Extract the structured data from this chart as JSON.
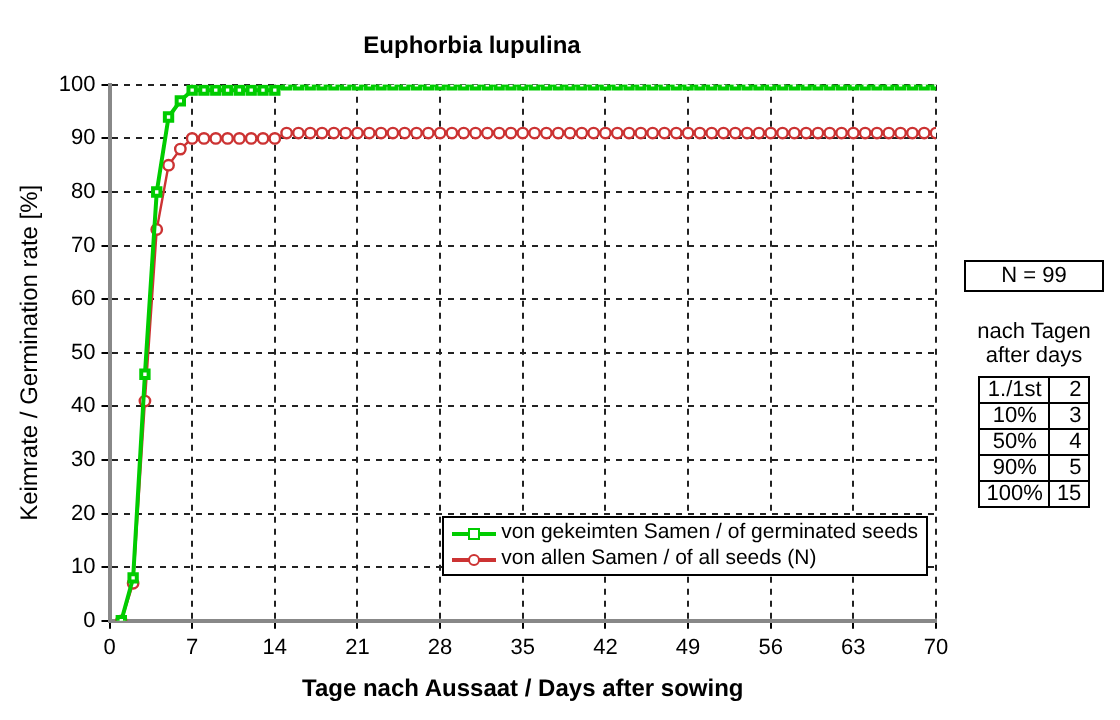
{
  "chart_data": {
    "type": "line",
    "title": "Euphorbia lupulina",
    "xlabel": "Tage nach Aussaat / Days after sowing",
    "ylabel": "Keimrate / Germination rate [%]",
    "x": [
      1,
      2,
      3,
      4,
      5,
      6,
      7,
      8,
      9,
      10,
      11,
      12,
      13,
      14,
      15,
      16,
      17,
      18,
      19,
      20,
      21,
      22,
      23,
      24,
      25,
      26,
      27,
      28,
      29,
      30,
      31,
      32,
      33,
      34,
      35,
      36,
      37,
      38,
      39,
      40,
      41,
      42,
      43,
      44,
      45,
      46,
      47,
      48,
      49,
      50,
      51,
      52,
      53,
      54,
      55,
      56,
      57,
      58,
      59,
      60,
      61,
      62,
      63,
      64,
      65,
      66,
      67,
      68,
      69,
      70
    ],
    "series": [
      {
        "name": "von gekeimten Samen / of germinated seeds",
        "color": "#00cc00",
        "marker": "square",
        "values": [
          0,
          8,
          46,
          80,
          94,
          97,
          99,
          99,
          99,
          99,
          99,
          99,
          99,
          99,
          100,
          100,
          100,
          100,
          100,
          100,
          100,
          100,
          100,
          100,
          100,
          100,
          100,
          100,
          100,
          100,
          100,
          100,
          100,
          100,
          100,
          100,
          100,
          100,
          100,
          100,
          100,
          100,
          100,
          100,
          100,
          100,
          100,
          100,
          100,
          100,
          100,
          100,
          100,
          100,
          100,
          100,
          100,
          100,
          100,
          100,
          100,
          100,
          100,
          100,
          100,
          100,
          100,
          100,
          100,
          100
        ]
      },
      {
        "name": "von allen Samen / of all seeds (N)",
        "color": "#cc3333",
        "marker": "circle",
        "values": [
          0,
          7,
          41,
          73,
          85,
          88,
          90,
          90,
          90,
          90,
          90,
          90,
          90,
          90,
          91,
          91,
          91,
          91,
          91,
          91,
          91,
          91,
          91,
          91,
          91,
          91,
          91,
          91,
          91,
          91,
          91,
          91,
          91,
          91,
          91,
          91,
          91,
          91,
          91,
          91,
          91,
          91,
          91,
          91,
          91,
          91,
          91,
          91,
          91,
          91,
          91,
          91,
          91,
          91,
          91,
          91,
          91,
          91,
          91,
          91,
          91,
          91,
          91,
          91,
          91,
          91,
          91,
          91,
          91,
          91
        ]
      }
    ],
    "xlim": [
      0,
      70
    ],
    "xticks": [
      0,
      7,
      14,
      21,
      28,
      35,
      42,
      49,
      56,
      63,
      70
    ],
    "ylim": [
      0,
      100
    ],
    "yticks": [
      0,
      10,
      20,
      30,
      40,
      50,
      60,
      70,
      80,
      90,
      100
    ],
    "grid": true,
    "line_style": "solid",
    "legend": "bottom right",
    "annotations": [
      "N = 99",
      "nach Tagen after days",
      "1./1st",
      "2",
      "10%",
      "3",
      "50%",
      "4",
      "90%",
      "5",
      "100%",
      "15"
    ]
  }
}
